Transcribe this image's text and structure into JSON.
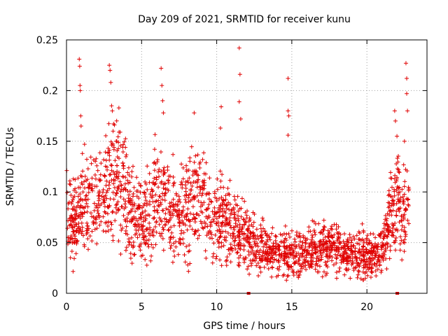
{
  "chart_data": {
    "type": "scatter",
    "title": "Day 209 of 2021, SRMTID for receiver kunu",
    "xlabel": "GPS time / hours",
    "ylabel": "SRMTID / TECUs",
    "xlim": [
      0,
      24
    ],
    "ylim": [
      0,
      0.25
    ],
    "xticks": [
      0,
      5,
      10,
      15,
      20
    ],
    "xtick_labels": [
      "0",
      "5",
      "10",
      "15",
      "20"
    ],
    "yticks": [
      0,
      0.05,
      0.1,
      0.15,
      0.2,
      0.25
    ],
    "ytick_labels": [
      "0",
      "0.05",
      "0.1",
      "0.15",
      "0.2",
      "0.25"
    ],
    "grid": true,
    "marker": "+",
    "color": "#e00000",
    "x_markers": [
      12.1,
      22.0
    ],
    "series": [
      {
        "name": "SRMTID",
        "trend": {
          "x": [
            0.0,
            0.5,
            1.0,
            1.5,
            2.0,
            2.5,
            3.0,
            3.5,
            4.0,
            4.5,
            5.0,
            5.5,
            6.0,
            6.5,
            7.0,
            7.5,
            8.0,
            8.5,
            9.0,
            9.5,
            10.0,
            10.5,
            11.0,
            11.5,
            12.0,
            12.5,
            13.0,
            13.5,
            14.0,
            14.5,
            15.0,
            15.5,
            16.0,
            16.5,
            17.0,
            17.5,
            18.0,
            18.5,
            19.0,
            19.5,
            20.0,
            20.5,
            21.0,
            21.5,
            22.0,
            22.5,
            22.8
          ],
          "y": [
            0.08,
            0.07,
            0.085,
            0.09,
            0.095,
            0.1,
            0.115,
            0.11,
            0.09,
            0.075,
            0.07,
            0.08,
            0.1,
            0.09,
            0.08,
            0.075,
            0.085,
            0.095,
            0.09,
            0.08,
            0.07,
            0.075,
            0.065,
            0.06,
            0.055,
            0.048,
            0.045,
            0.042,
            0.038,
            0.04,
            0.038,
            0.04,
            0.042,
            0.045,
            0.045,
            0.048,
            0.045,
            0.042,
            0.04,
            0.04,
            0.038,
            0.035,
            0.038,
            0.07,
            0.09,
            0.075,
            0.08
          ]
        },
        "outliers": [
          {
            "x": 0.85,
            "y": 0.231
          },
          {
            "x": 0.88,
            "y": 0.224
          },
          {
            "x": 0.9,
            "y": 0.205
          },
          {
            "x": 0.92,
            "y": 0.2
          },
          {
            "x": 0.95,
            "y": 0.175
          },
          {
            "x": 0.97,
            "y": 0.165
          },
          {
            "x": 2.85,
            "y": 0.225
          },
          {
            "x": 2.9,
            "y": 0.22
          },
          {
            "x": 2.95,
            "y": 0.208
          },
          {
            "x": 3.0,
            "y": 0.185
          },
          {
            "x": 3.05,
            "y": 0.18
          },
          {
            "x": 3.1,
            "y": 0.16
          },
          {
            "x": 6.3,
            "y": 0.222
          },
          {
            "x": 6.35,
            "y": 0.205
          },
          {
            "x": 6.4,
            "y": 0.19
          },
          {
            "x": 6.45,
            "y": 0.178
          },
          {
            "x": 8.5,
            "y": 0.178
          },
          {
            "x": 10.3,
            "y": 0.184
          },
          {
            "x": 10.25,
            "y": 0.163
          },
          {
            "x": 11.5,
            "y": 0.242
          },
          {
            "x": 11.55,
            "y": 0.216
          },
          {
            "x": 11.5,
            "y": 0.189
          },
          {
            "x": 11.6,
            "y": 0.172
          },
          {
            "x": 14.75,
            "y": 0.212
          },
          {
            "x": 14.75,
            "y": 0.18
          },
          {
            "x": 14.8,
            "y": 0.175
          },
          {
            "x": 14.75,
            "y": 0.156
          },
          {
            "x": 22.6,
            "y": 0.227
          },
          {
            "x": 22.65,
            "y": 0.212
          },
          {
            "x": 22.65,
            "y": 0.197
          },
          {
            "x": 22.7,
            "y": 0.18
          },
          {
            "x": 21.85,
            "y": 0.18
          },
          {
            "x": 21.9,
            "y": 0.17
          },
          {
            "x": 22.0,
            "y": 0.155
          },
          {
            "x": 22.5,
            "y": 0.15
          }
        ]
      }
    ]
  }
}
